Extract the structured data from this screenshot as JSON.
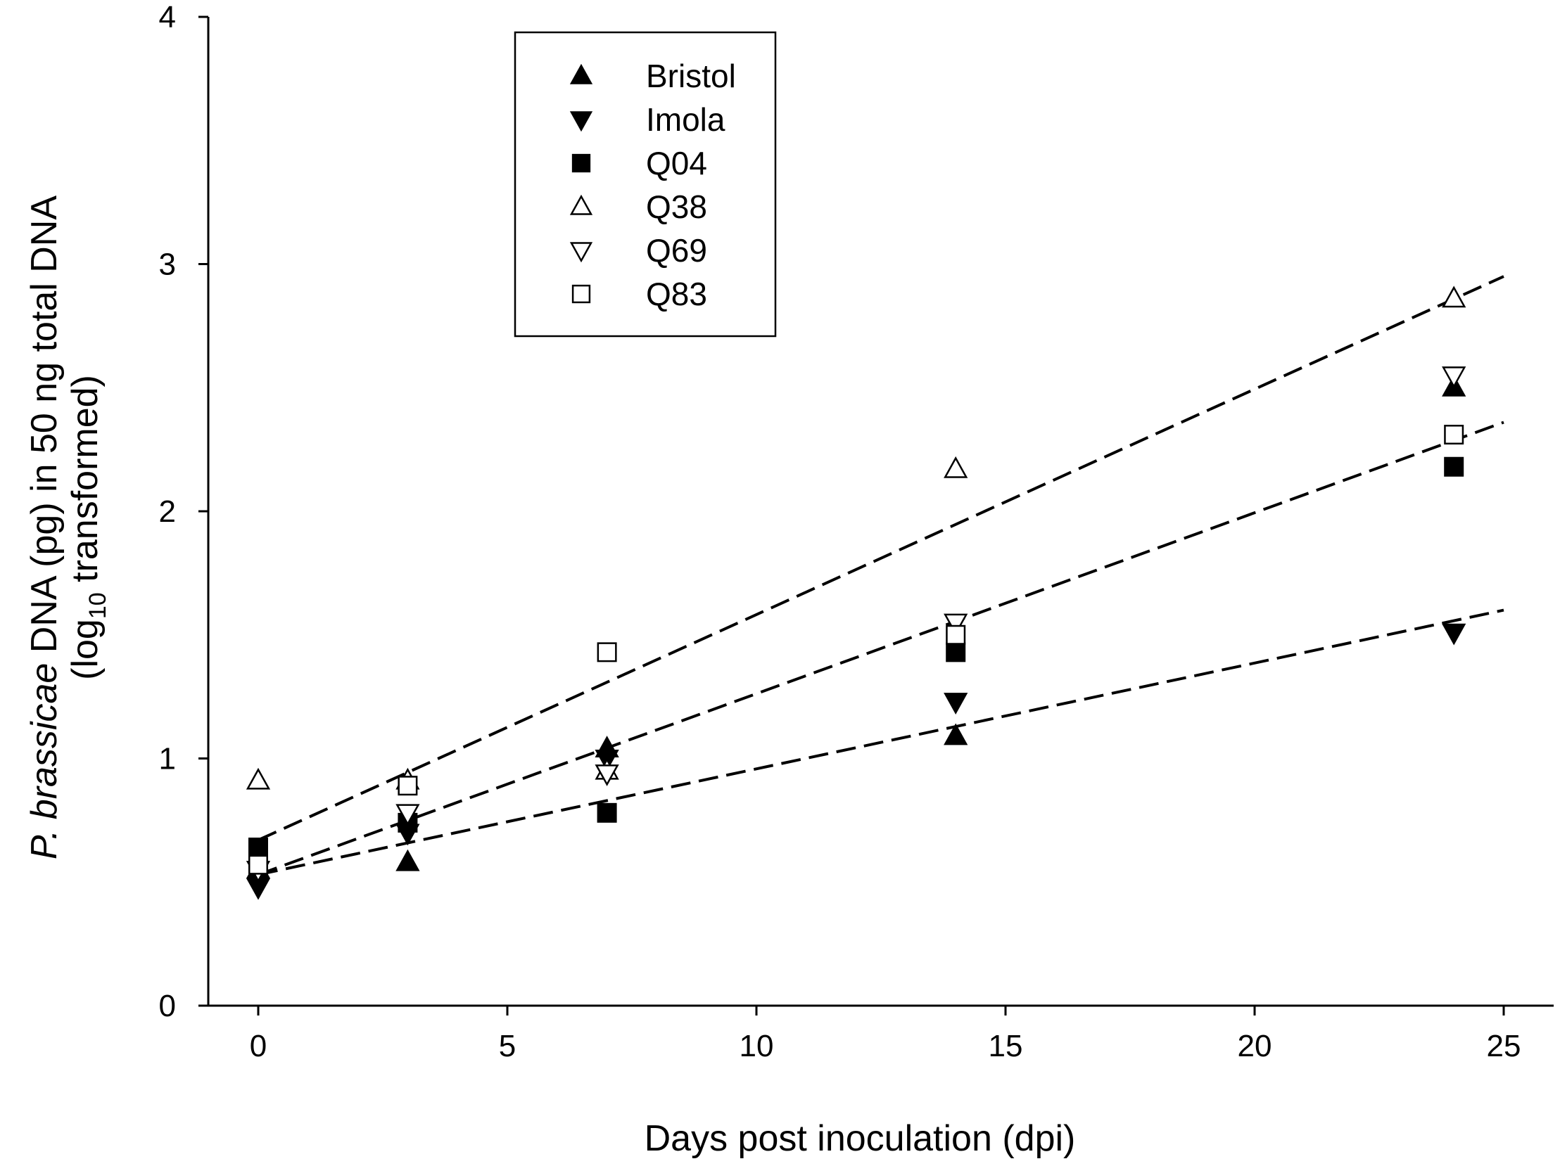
{
  "chart_data": {
    "type": "scatter",
    "xlabel": "Days post inoculation (dpi)",
    "ylabel": {
      "line1_italic": "P. brassicae",
      "line1_rest": " DNA (pg) in 50 ng total DNA",
      "line2_pre": "(log",
      "line2_sub": "10",
      "line2_post": " transformed)"
    },
    "xlim": [
      -2,
      26
    ],
    "ylim": [
      0,
      4
    ],
    "xticks": [
      0,
      5,
      10,
      15,
      20,
      25
    ],
    "yticks": [
      0,
      1,
      2,
      3,
      4
    ],
    "grid": false,
    "legend_position": "top-left",
    "series": [
      {
        "name": "Bristol",
        "marker": "triangle-up",
        "filled": true,
        "points": [
          [
            0,
            0.55
          ],
          [
            3,
            0.58
          ],
          [
            7,
            1.04
          ],
          [
            14,
            1.09
          ],
          [
            24,
            2.5
          ]
        ]
      },
      {
        "name": "Imola",
        "marker": "triangle-down",
        "filled": true,
        "points": [
          [
            0,
            0.48
          ],
          [
            3,
            0.7
          ],
          [
            7,
            1.0
          ],
          [
            14,
            1.23
          ],
          [
            24,
            1.51
          ]
        ]
      },
      {
        "name": "Q04",
        "marker": "square",
        "filled": true,
        "points": [
          [
            0,
            0.64
          ],
          [
            3,
            0.74
          ],
          [
            7,
            0.78
          ],
          [
            14,
            1.43
          ],
          [
            24,
            2.18
          ]
        ]
      },
      {
        "name": "Q38",
        "marker": "triangle-up",
        "filled": false,
        "points": [
          [
            0,
            0.91
          ],
          [
            3,
            0.91
          ],
          [
            7,
            0.95
          ],
          [
            14,
            2.17
          ],
          [
            24,
            2.86
          ]
        ]
      },
      {
        "name": "Q69",
        "marker": "triangle-down",
        "filled": false,
        "points": [
          [
            0,
            0.55
          ],
          [
            3,
            0.78
          ],
          [
            7,
            0.94
          ],
          [
            14,
            1.55
          ],
          [
            24,
            2.55
          ]
        ]
      },
      {
        "name": "Q83",
        "marker": "square",
        "filled": false,
        "points": [
          [
            0,
            0.57
          ],
          [
            3,
            0.89
          ],
          [
            7,
            1.43
          ],
          [
            14,
            1.5
          ],
          [
            24,
            2.31
          ]
        ]
      }
    ],
    "trend_lines": [
      {
        "name": "upper-fit",
        "style": "dashed",
        "x": [
          0,
          25
        ],
        "y": [
          0.67,
          2.95
        ]
      },
      {
        "name": "middle-fit",
        "style": "dashed",
        "x": [
          0,
          25
        ],
        "y": [
          0.53,
          2.36
        ]
      },
      {
        "name": "lower-fit",
        "style": "dashed",
        "x": [
          0,
          25
        ],
        "y": [
          0.53,
          1.6
        ]
      }
    ]
  }
}
